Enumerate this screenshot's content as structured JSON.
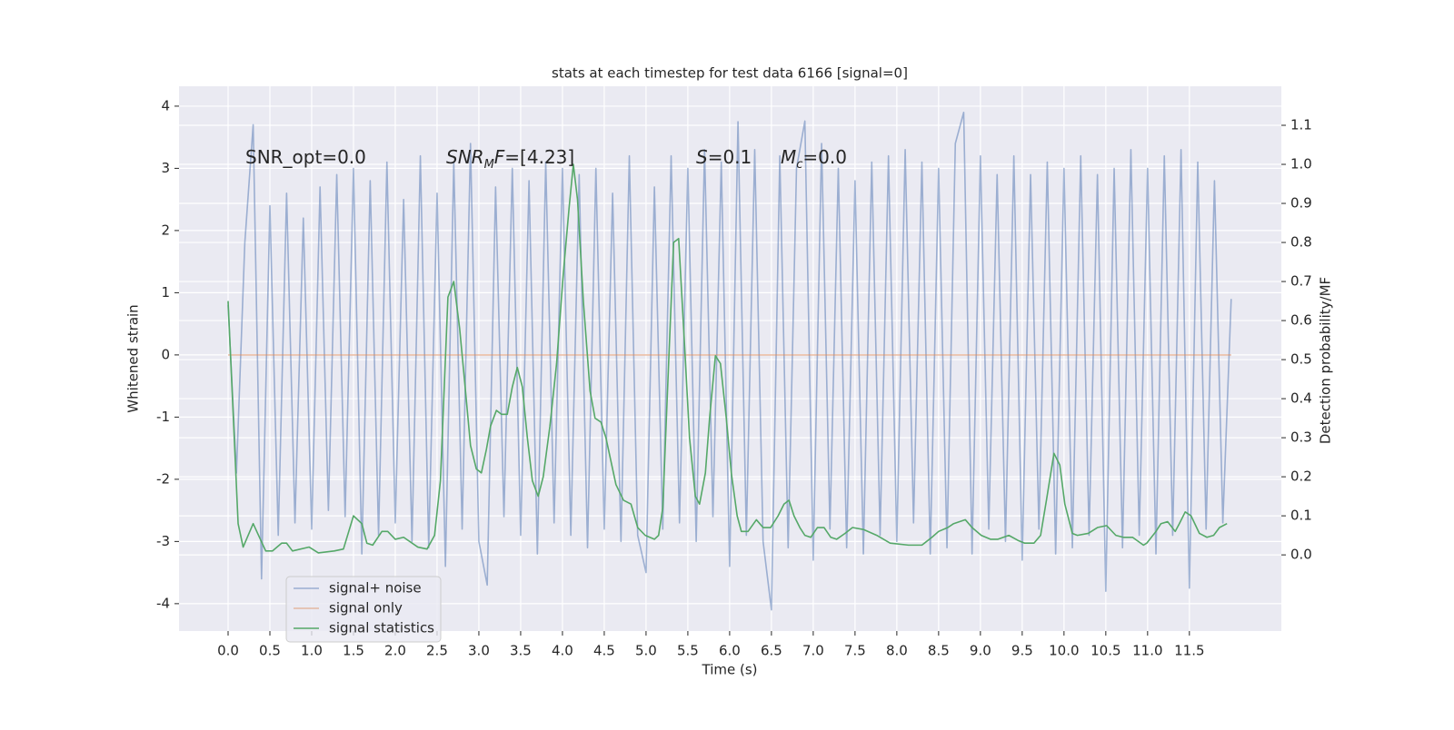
{
  "chart_data": {
    "type": "line",
    "title": "stats at each timestep for test data 6166 [signal=0]",
    "xlabel": "Time (s)",
    "ylabel": "Whitened strain",
    "y2label": "Detection probability/MF",
    "grid": true,
    "legend": "lower left",
    "background": "#eaeaf2",
    "xlim": [
      -0.587,
      12.6
    ],
    "ylim": [
      -4.44,
      4.32
    ],
    "y2lim": [
      -0.195,
      1.2
    ],
    "xticks": [
      {
        "value": 0,
        "label": "0.0"
      },
      {
        "value": 0.5,
        "label": "0.5"
      },
      {
        "value": 1,
        "label": "1.0"
      },
      {
        "value": 1.5,
        "label": "1.5"
      },
      {
        "value": 2,
        "label": "2.0"
      },
      {
        "value": 2.5,
        "label": "2.5"
      },
      {
        "value": 3,
        "label": "3.0"
      },
      {
        "value": 3.5,
        "label": "3.5"
      },
      {
        "value": 4,
        "label": "4.0"
      },
      {
        "value": 4.5,
        "label": "4.5"
      },
      {
        "value": 5,
        "label": "5.0"
      },
      {
        "value": 5.5,
        "label": "5.5"
      },
      {
        "value": 6,
        "label": "6.0"
      },
      {
        "value": 6.5,
        "label": "6.5"
      },
      {
        "value": 7,
        "label": "7.0"
      },
      {
        "value": 7.5,
        "label": "7.5"
      },
      {
        "value": 8,
        "label": "8.0"
      },
      {
        "value": 8.5,
        "label": "8.5"
      },
      {
        "value": 9,
        "label": "9.0"
      },
      {
        "value": 9.5,
        "label": "9.5"
      },
      {
        "value": 10,
        "label": "10.0"
      },
      {
        "value": 10.5,
        "label": "10.5"
      },
      {
        "value": 11,
        "label": "11.0"
      },
      {
        "value": 11.5,
        "label": "11.5"
      }
    ],
    "yticks": [
      -4,
      -3,
      -2,
      -1,
      0,
      1,
      2,
      3,
      4
    ],
    "y2ticks": [
      {
        "value": 0,
        "label": "0.0"
      },
      {
        "value": 0.1,
        "label": "0.1"
      },
      {
        "value": 0.2,
        "label": "0.2"
      },
      {
        "value": 0.3,
        "label": "0.3"
      },
      {
        "value": 0.4,
        "label": "0.4"
      },
      {
        "value": 0.5,
        "label": "0.5"
      },
      {
        "value": 0.6,
        "label": "0.6"
      },
      {
        "value": 0.7,
        "label": "0.7"
      },
      {
        "value": 0.8,
        "label": "0.8"
      },
      {
        "value": 0.9,
        "label": "0.9"
      },
      {
        "value": 1,
        "label": "1.0"
      },
      {
        "value": 1.1,
        "label": "1.1"
      }
    ],
    "x": [
      0.0,
      0.1,
      0.2,
      0.3,
      0.4,
      0.5,
      0.6,
      0.7,
      0.8,
      0.9,
      1.0,
      1.1,
      1.2,
      1.3,
      1.4,
      1.5,
      1.6,
      1.7,
      1.8,
      1.9,
      2.0,
      2.1,
      2.2,
      2.3,
      2.4,
      2.5,
      2.6,
      2.7,
      2.8,
      2.9,
      3.0,
      3.1,
      3.2,
      3.3,
      3.4,
      3.5,
      3.6,
      3.7,
      3.8,
      3.9,
      4.0,
      4.1,
      4.2,
      4.3,
      4.4,
      4.5,
      4.6,
      4.7,
      4.8,
      4.9,
      5.0,
      5.1,
      5.2,
      5.3,
      5.4,
      5.5,
      5.6,
      5.7,
      5.8,
      5.9,
      6.0,
      6.1,
      6.2,
      6.3,
      6.4,
      6.5,
      6.6,
      6.7,
      6.8,
      6.9,
      7.0,
      7.1,
      7.2,
      7.3,
      7.4,
      7.5,
      7.6,
      7.7,
      7.8,
      7.9,
      8.0,
      8.1,
      8.2,
      8.3,
      8.4,
      8.5,
      8.6,
      8.7,
      8.8,
      8.9,
      9.0,
      9.1,
      9.2,
      9.3,
      9.4,
      9.5,
      9.6,
      9.7,
      9.8,
      9.9,
      10.0,
      10.1,
      10.2,
      10.3,
      10.4,
      10.5,
      10.6,
      10.7,
      10.8,
      10.9,
      11.0,
      11.1,
      11.2,
      11.3,
      11.4,
      11.5,
      11.6,
      11.7,
      11.8,
      11.9,
      12.0
    ],
    "series": [
      {
        "name": "signal+ noise",
        "color": "#4c72b0",
        "opacity": 0.5,
        "values": [
          0.8,
          -1.9,
          1.8,
          3.7,
          -3.6,
          2.4,
          -2.9,
          2.6,
          -2.7,
          2.2,
          -2.8,
          2.7,
          -2.5,
          2.9,
          -2.6,
          3.0,
          -3.2,
          2.8,
          -2.9,
          3.1,
          -2.7,
          2.5,
          -3.0,
          3.2,
          -3.1,
          2.6,
          -3.4,
          3.1,
          -2.8,
          3.4,
          -3.0,
          -3.7,
          2.7,
          -2.6,
          3.0,
          -2.9,
          2.8,
          -3.2,
          3.1,
          -2.7,
          3.0,
          -2.9,
          2.9,
          -3.1,
          3.0,
          -2.8,
          2.6,
          -3.0,
          3.2,
          -2.9,
          -3.5,
          2.7,
          -2.8,
          3.2,
          -2.7,
          3.0,
          -3.0,
          3.3,
          -2.6,
          3.1,
          -3.4,
          3.75,
          -2.9,
          3.3,
          -3.0,
          -4.1,
          3.2,
          -3.1,
          3.0,
          3.76,
          -3.3,
          3.4,
          -2.8,
          3.0,
          -3.1,
          2.8,
          -3.2,
          3.1,
          -2.9,
          3.2,
          -3.0,
          3.3,
          -2.7,
          3.1,
          -3.2,
          3.0,
          -3.1,
          3.4,
          3.9,
          -3.2,
          3.2,
          -2.8,
          2.9,
          -3.0,
          3.2,
          -3.3,
          2.9,
          -2.8,
          3.1,
          -3.2,
          3.0,
          -3.1,
          3.2,
          -2.9,
          2.9,
          -3.8,
          3.0,
          -3.1,
          3.3,
          -2.9,
          3.0,
          -3.2,
          3.2,
          -2.9,
          3.3,
          -3.75,
          3.1,
          -2.8,
          2.8,
          -2.7,
          0.9
        ]
      },
      {
        "name": "signal only",
        "color": "#dd8452",
        "opacity": 0.5,
        "values": [
          0,
          0,
          0,
          0,
          0,
          0,
          0,
          0,
          0,
          0,
          0,
          0,
          0,
          0,
          0,
          0,
          0,
          0,
          0,
          0,
          0,
          0,
          0,
          0,
          0,
          0,
          0,
          0,
          0,
          0,
          0,
          0,
          0,
          0,
          0,
          0,
          0,
          0,
          0,
          0,
          0,
          0,
          0,
          0,
          0,
          0,
          0,
          0,
          0,
          0,
          0,
          0,
          0,
          0,
          0,
          0,
          0,
          0,
          0,
          0,
          0,
          0,
          0,
          0,
          0,
          0,
          0,
          0,
          0,
          0,
          0,
          0,
          0,
          0,
          0,
          0,
          0,
          0,
          0,
          0,
          0,
          0,
          0,
          0,
          0,
          0,
          0,
          0,
          0,
          0,
          0,
          0,
          0,
          0,
          0,
          0,
          0,
          0,
          0,
          0,
          0,
          0,
          0,
          0,
          0,
          0,
          0,
          0,
          0,
          0,
          0,
          0,
          0,
          0,
          0,
          0,
          0,
          0,
          0,
          0,
          0
        ]
      },
      {
        "name": "signal statistics",
        "color": "#55a868",
        "opacity": 1,
        "axis": "y2",
        "x": [
          0,
          0.12,
          0.18,
          0.3,
          0.45,
          0.53,
          0.64,
          0.7,
          0.77,
          0.97,
          1.08,
          1.27,
          1.38,
          1.5,
          1.6,
          1.66,
          1.73,
          1.84,
          1.91,
          2.0,
          2.1,
          2.27,
          2.38,
          2.47,
          2.54,
          2.63,
          2.7,
          2.77,
          2.84,
          2.9,
          2.97,
          3.03,
          3.09,
          3.14,
          3.21,
          3.27,
          3.34,
          3.4,
          3.46,
          3.52,
          3.58,
          3.64,
          3.71,
          3.77,
          3.85,
          3.93,
          4.01,
          4.08,
          4.13,
          4.18,
          4.25,
          4.33,
          4.39,
          4.46,
          4.52,
          4.59,
          4.64,
          4.73,
          4.82,
          4.9,
          4.99,
          5.1,
          5.15,
          5.2,
          5.27,
          5.33,
          5.39,
          5.46,
          5.52,
          5.59,
          5.64,
          5.71,
          5.76,
          5.83,
          5.89,
          5.96,
          6.02,
          6.09,
          6.14,
          6.22,
          6.32,
          6.4,
          6.49,
          6.58,
          6.65,
          6.71,
          6.77,
          6.84,
          6.9,
          6.97,
          7.05,
          7.13,
          7.21,
          7.28,
          7.38,
          7.47,
          7.6,
          7.76,
          7.92,
          8.14,
          8.3,
          8.42,
          8.5,
          8.61,
          8.68,
          8.82,
          8.9,
          9.01,
          9.12,
          9.21,
          9.34,
          9.45,
          9.53,
          9.64,
          9.72,
          9.79,
          9.88,
          9.95,
          10.01,
          10.1,
          10.16,
          10.29,
          10.4,
          10.51,
          10.62,
          10.71,
          10.82,
          10.95,
          10.99,
          11.1,
          11.16,
          11.24,
          11.33,
          11.38,
          11.45,
          11.52,
          11.62,
          11.71,
          11.79,
          11.86,
          11.95
        ],
        "values": [
          0.65,
          0.08,
          0.02,
          0.08,
          0.01,
          0.01,
          0.03,
          0.03,
          0.01,
          0.02,
          0.005,
          0.01,
          0.015,
          0.1,
          0.08,
          0.03,
          0.025,
          0.06,
          0.06,
          0.04,
          0.045,
          0.02,
          0.015,
          0.05,
          0.19,
          0.66,
          0.7,
          0.58,
          0.42,
          0.28,
          0.22,
          0.21,
          0.27,
          0.33,
          0.37,
          0.36,
          0.36,
          0.43,
          0.48,
          0.43,
          0.3,
          0.19,
          0.15,
          0.2,
          0.33,
          0.49,
          0.72,
          0.89,
          1.0,
          0.91,
          0.65,
          0.42,
          0.35,
          0.34,
          0.3,
          0.23,
          0.18,
          0.14,
          0.13,
          0.07,
          0.05,
          0.04,
          0.05,
          0.12,
          0.49,
          0.8,
          0.81,
          0.54,
          0.3,
          0.15,
          0.13,
          0.21,
          0.35,
          0.51,
          0.49,
          0.35,
          0.21,
          0.1,
          0.06,
          0.06,
          0.09,
          0.07,
          0.07,
          0.1,
          0.13,
          0.14,
          0.1,
          0.07,
          0.05,
          0.045,
          0.07,
          0.07,
          0.045,
          0.04,
          0.055,
          0.07,
          0.065,
          0.05,
          0.03,
          0.025,
          0.025,
          0.045,
          0.06,
          0.07,
          0.08,
          0.09,
          0.07,
          0.05,
          0.04,
          0.04,
          0.05,
          0.037,
          0.03,
          0.03,
          0.05,
          0.14,
          0.26,
          0.23,
          0.13,
          0.055,
          0.05,
          0.055,
          0.07,
          0.075,
          0.05,
          0.045,
          0.045,
          0.025,
          0.03,
          0.06,
          0.08,
          0.085,
          0.06,
          0.08,
          0.11,
          0.1,
          0.055,
          0.045,
          0.05,
          0.07,
          0.08
        ]
      }
    ],
    "annotations": [
      [
        {
          "text": "SNR_opt=0.0"
        }
      ],
      [
        {
          "text": "SNR",
          "italic": true
        },
        {
          "text": "M",
          "italic": true,
          "sub": true
        },
        {
          "text": "F",
          "italic": true
        },
        {
          "text": "=[4.23]"
        }
      ],
      [
        {
          "text": "S",
          "italic": true
        },
        {
          "text": "=0.1"
        }
      ],
      [
        {
          "text": "M",
          "italic": true
        },
        {
          "text": "c",
          "italic": true,
          "sub": true
        },
        {
          "text": "=0.0"
        }
      ]
    ]
  }
}
